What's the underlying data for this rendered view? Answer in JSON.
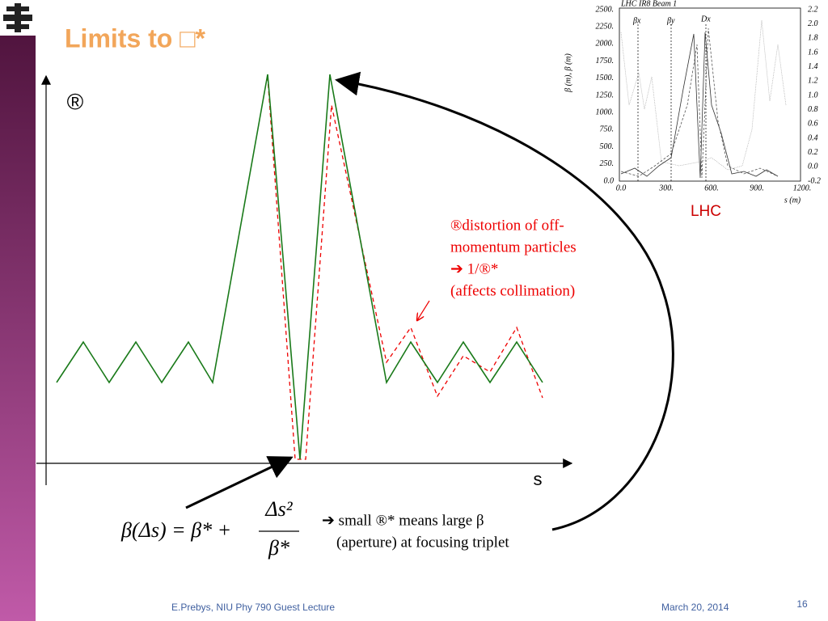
{
  "header": {
    "title": "Limits to □*"
  },
  "diagram": {
    "beta_symbol": "®",
    "s_label": "s",
    "annotation": [
      "®distortion of off-",
      "momentum particles",
      "➔ 1/®*",
      "(affects collimation)"
    ],
    "formula": {
      "lhs": "β(Δs) = β* +",
      "numerator": "Δs²",
      "denominator": "β*"
    },
    "note": [
      "➔ small ®* means large β",
      "(aperture) at focusing triplet"
    ]
  },
  "inset": {
    "title": "LHC IR8 Beam 1",
    "caption": "LHC",
    "left_ticks": [
      "2500.",
      "2250.",
      "2000.",
      "1750.",
      "1500.",
      "1250.",
      "1000.",
      "750.",
      "500.",
      "250.",
      "0.0"
    ],
    "right_ticks": [
      "2.2",
      "2.0",
      "1.8",
      "1.6",
      "1.4",
      "1.2",
      "1.0",
      "0.8",
      "0.6",
      "0.4",
      "0.2",
      "0.0",
      "-0.2"
    ],
    "x_ticks": [
      "0.0",
      "300.",
      "600.",
      "900.",
      "1200."
    ],
    "y_label": "β (m), β (m)",
    "x_label": "s (m)",
    "markers": [
      "βx",
      "βy",
      "Dx"
    ]
  },
  "footer": {
    "author": "E.Prebys, NIU Phy 790 Guest Lecture",
    "date": "March 20, 2014",
    "page": "16"
  }
}
